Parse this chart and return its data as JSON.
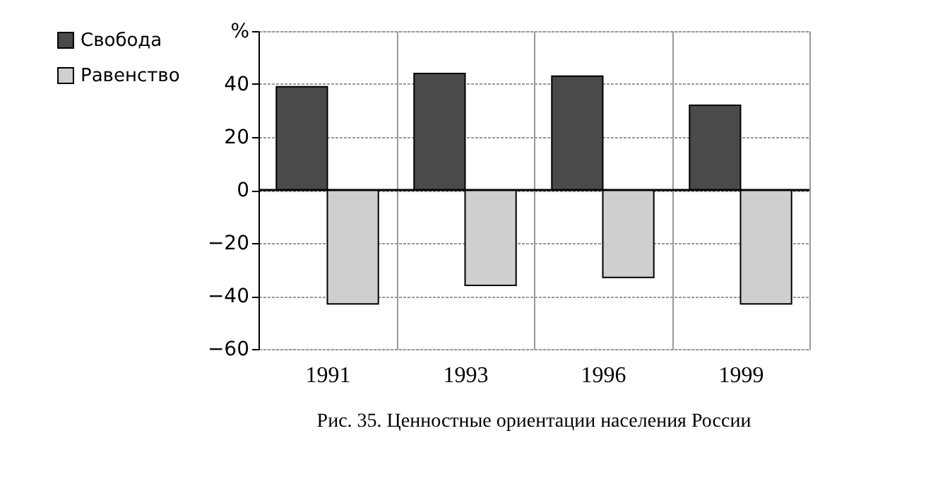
{
  "chart_data": {
    "type": "bar",
    "categories": [
      "1991",
      "1993",
      "1996",
      "1999"
    ],
    "series": [
      {
        "name": "Свобода",
        "color": "#4a4a4a",
        "values": [
          39,
          44,
          43,
          32
        ]
      },
      {
        "name": "Равенство",
        "color": "#cfcfcf",
        "values": [
          -43,
          -36,
          -33,
          -43
        ]
      }
    ],
    "ylim": [
      -60,
      60
    ],
    "yticks": [
      -60,
      -40,
      -20,
      0,
      20,
      40,
      {
        "value": 60,
        "label": "%"
      }
    ],
    "grid": true,
    "legend": "left",
    "annotations": [
      "Рис. 35.  Ценностные ориентации населения России"
    ]
  }
}
